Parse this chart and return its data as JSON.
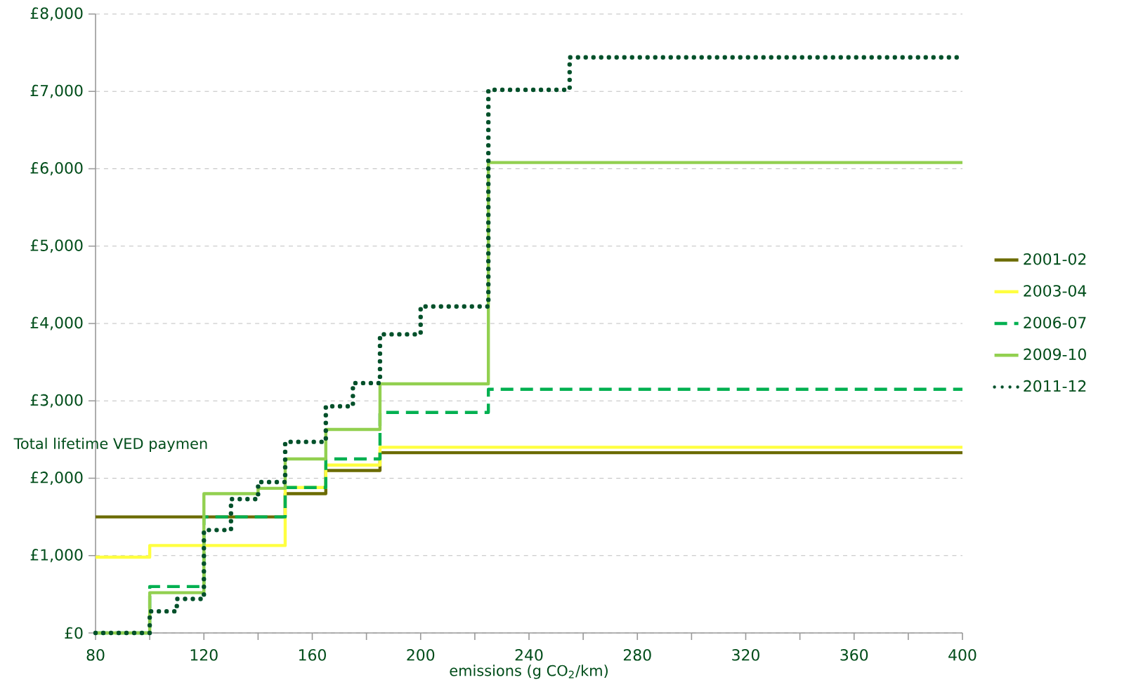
{
  "chart_data": {
    "type": "step",
    "xlabel": "emissions (g  CO$_{2}$/km)",
    "ylabel": "Total lifetime VED paymen",
    "xlim": [
      80,
      400
    ],
    "ylim": [
      0,
      8000
    ],
    "xticks": [
      80,
      {
        "value": 100,
        "label": null
      },
      120,
      {
        "value": 140,
        "label": null
      },
      160,
      {
        "value": 180,
        "label": null
      },
      200,
      {
        "value": 220,
        "label": null
      },
      240,
      {
        "value": 260,
        "label": null
      },
      280,
      {
        "value": 300,
        "label": null
      },
      320,
      {
        "value": 340,
        "label": null
      },
      360,
      {
        "value": 380,
        "label": null
      },
      400
    ],
    "yticks": [
      {
        "value": 0,
        "label": "£0"
      },
      {
        "value": 1000,
        "label": "£1,000"
      },
      {
        "value": 2000,
        "label": "£2,000"
      },
      {
        "value": 3000,
        "label": "£3,000"
      },
      {
        "value": 4000,
        "label": "£4,000"
      },
      {
        "value": 5000,
        "label": "£5,000"
      },
      {
        "value": 6000,
        "label": "£6,000"
      },
      {
        "value": 7000,
        "label": "£7,000"
      },
      {
        "value": 8000,
        "label": "£8,000"
      }
    ],
    "grid": "y",
    "legend": "right",
    "marker": "none",
    "series": [
      {
        "name": "2001-02",
        "color": "#6b6b00",
        "line_style": "solid",
        "x": [
          80,
          150,
          165,
          185,
          400
        ],
        "values": [
          1500,
          1800,
          2100,
          2330,
          2330
        ]
      },
      {
        "name": "2003-04",
        "color": "#ffff40",
        "line_style": "solid",
        "x": [
          80,
          100,
          150,
          165,
          185,
          400
        ],
        "values": [
          980,
          1130,
          1880,
          2170,
          2400,
          2400
        ]
      },
      {
        "name": "2006-07",
        "color": "#00b050",
        "line_style": "dashed",
        "x": [
          80,
          100,
          120,
          150,
          165,
          185,
          225,
          400
        ],
        "values": [
          0,
          600,
          1500,
          1880,
          2250,
          2850,
          3150,
          3150
        ]
      },
      {
        "name": "2009-10",
        "color": "#92d050",
        "line_style": "solid",
        "x": [
          80,
          100,
          120,
          140,
          150,
          165,
          185,
          225,
          400
        ],
        "values": [
          0,
          520,
          1800,
          1870,
          2250,
          2630,
          3220,
          6080,
          6080
        ]
      },
      {
        "name": "2011-12",
        "color": "#00502a",
        "line_style": "dotted",
        "x": [
          80,
          100,
          110,
          120,
          130,
          140,
          150,
          165,
          175,
          185,
          200,
          225,
          255,
          400
        ],
        "values": [
          0,
          280,
          440,
          1330,
          1730,
          1950,
          2470,
          2930,
          3230,
          3860,
          4220,
          7020,
          7440,
          7440
        ]
      }
    ]
  }
}
